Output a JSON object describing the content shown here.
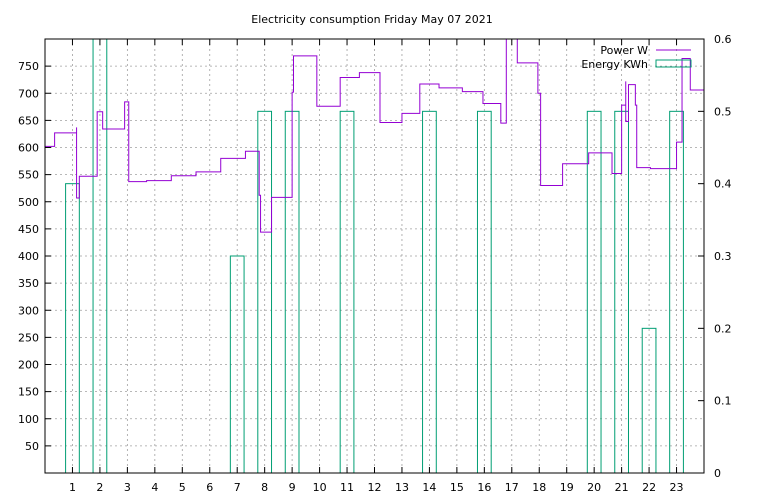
{
  "chart_data": {
    "type": "line",
    "title": "Electricity consumption Friday May 07 2021",
    "xlabel": "",
    "ylabel": "",
    "xlim": [
      0,
      24
    ],
    "ylim": [
      0,
      800
    ],
    "y2lim": [
      0,
      0.6
    ],
    "grid": true,
    "legend_position": "top-right",
    "x_ticks": [
      1,
      2,
      3,
      4,
      5,
      6,
      7,
      8,
      9,
      10,
      11,
      12,
      13,
      14,
      15,
      16,
      17,
      18,
      19,
      20,
      21,
      22,
      23
    ],
    "y_ticks": [
      50,
      100,
      150,
      200,
      250,
      300,
      350,
      400,
      450,
      500,
      550,
      600,
      650,
      700,
      750
    ],
    "y2_ticks": [
      0,
      0.1,
      0.2,
      0.3,
      0.4,
      0.5,
      0.6
    ],
    "y2_tick_labels": [
      "0",
      "0.1",
      "0.2",
      "0.3",
      "0.4",
      "0.5",
      "0.6"
    ],
    "series": [
      {
        "name": "Power W",
        "color": "#9400d3",
        "axis": "y",
        "style": "steps",
        "points": [
          [
            0,
            602
          ],
          [
            0.35,
            627
          ],
          [
            1.15,
            637
          ],
          [
            1.15,
            507
          ],
          [
            1.25,
            547
          ],
          [
            1.9,
            666
          ],
          [
            2.1,
            634
          ],
          [
            2.9,
            684
          ],
          [
            3.05,
            537
          ],
          [
            3.7,
            539
          ],
          [
            4.6,
            548
          ],
          [
            5.5,
            555
          ],
          [
            6.4,
            580
          ],
          [
            7.3,
            593
          ],
          [
            7.8,
            512
          ],
          [
            7.85,
            444
          ],
          [
            8.25,
            508
          ],
          [
            9.0,
            702
          ],
          [
            9.05,
            769
          ],
          [
            9.9,
            676
          ],
          [
            10.75,
            729
          ],
          [
            11.45,
            738
          ],
          [
            12.2,
            646
          ],
          [
            13.0,
            663
          ],
          [
            13.65,
            717
          ],
          [
            14.35,
            710
          ],
          [
            15.2,
            703
          ],
          [
            15.95,
            681
          ],
          [
            16.6,
            645
          ],
          [
            16.8,
            800
          ],
          [
            17.2,
            756
          ],
          [
            17.95,
            700
          ],
          [
            18.05,
            530
          ],
          [
            18.85,
            570
          ],
          [
            19.8,
            590
          ],
          [
            20.65,
            552
          ],
          [
            21.0,
            678
          ],
          [
            21.15,
            722
          ],
          [
            21.15,
            648
          ],
          [
            21.25,
            716
          ],
          [
            21.5,
            678
          ],
          [
            21.55,
            563
          ],
          [
            22.05,
            561
          ],
          [
            23.0,
            610
          ],
          [
            23.2,
            764
          ],
          [
            23.5,
            706
          ],
          [
            24,
            706
          ]
        ]
      },
      {
        "name": "Energy KWh",
        "color": "#009e73",
        "axis": "y2",
        "style": "boxes",
        "points": [
          [
            1,
            0.4
          ],
          [
            2,
            0.6
          ],
          [
            7,
            0.3
          ],
          [
            8,
            0.5
          ],
          [
            9,
            0.5
          ],
          [
            11,
            0.5
          ],
          [
            14,
            0.5
          ],
          [
            16,
            0.5
          ],
          [
            20,
            0.5
          ],
          [
            21,
            0.5
          ],
          [
            22,
            0.2
          ],
          [
            23,
            0.5
          ]
        ]
      }
    ]
  }
}
